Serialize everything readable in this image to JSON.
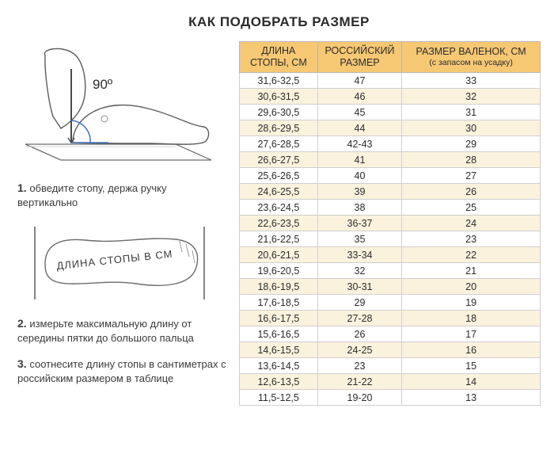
{
  "title": "КАК ПОДОБРАТЬ РАЗМЕР",
  "angle_label": "90º",
  "foot_length_label": "ДЛИНА СТОПЫ В СМ",
  "steps": [
    {
      "num": "1.",
      "text": "обведите стопу, держа ручку вертикально"
    },
    {
      "num": "2.",
      "text": "измерьте максимальную длину от середины пятки до большого пальца"
    },
    {
      "num": "3.",
      "text": "соотнесите длину стопы в сантиметрах с российским размером в таблице"
    }
  ],
  "table": {
    "headers": [
      {
        "line1": "ДЛИНА",
        "line2": "СТОПЫ, СМ"
      },
      {
        "line1": "РОССИЙСКИЙ",
        "line2": "РАЗМЕР"
      },
      {
        "line1": "РАЗМЕР ВАЛЕНОК, СМ",
        "line2": "(с запасом на усадку)"
      }
    ],
    "rows": [
      [
        "31,6-32,5",
        "47",
        "33"
      ],
      [
        "30,6-31,5",
        "46",
        "32"
      ],
      [
        "29,6-30,5",
        "45",
        "31"
      ],
      [
        "28,6-29,5",
        "44",
        "30"
      ],
      [
        "27,6-28,5",
        "42-43",
        "29"
      ],
      [
        "26,6-27,5",
        "41",
        "28"
      ],
      [
        "25,6-26,5",
        "40",
        "27"
      ],
      [
        "24,6-25,5",
        "39",
        "26"
      ],
      [
        "23,6-24,5",
        "38",
        "25"
      ],
      [
        "22,6-23,5",
        "36-37",
        "24"
      ],
      [
        "21,6-22,5",
        "35",
        "23"
      ],
      [
        "20,6-21,5",
        "33-34",
        "22"
      ],
      [
        "19,6-20,5",
        "32",
        "21"
      ],
      [
        "18,6-19,5",
        "30-31",
        "20"
      ],
      [
        "17,6-18,5",
        "29",
        "19"
      ],
      [
        "16,6-17,5",
        "27-28",
        "18"
      ],
      [
        "15,6-16,5",
        "26",
        "17"
      ],
      [
        "14,6-15,5",
        "24-25",
        "16"
      ],
      [
        "13,6-14,5",
        "23",
        "15"
      ],
      [
        "12,6-13,5",
        "21-22",
        "14"
      ],
      [
        "11,5-12,5",
        "19-20",
        "13"
      ]
    ],
    "header_bg": "#f7c873",
    "stripe_bg": "#fbf2de",
    "border_color": "#cfcfcf"
  }
}
